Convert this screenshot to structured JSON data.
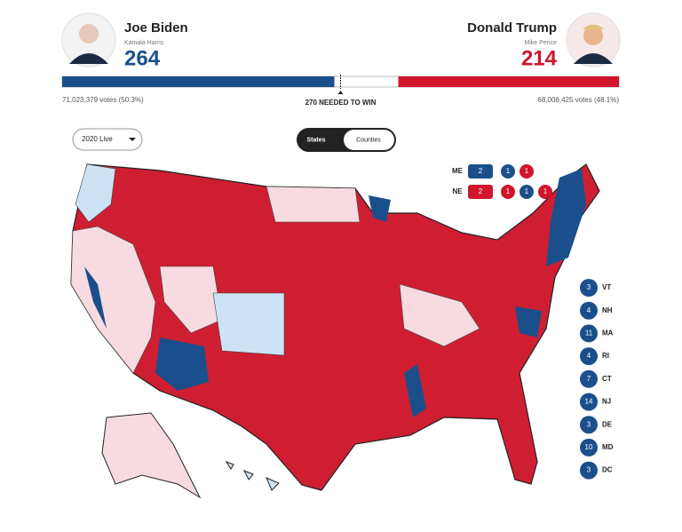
{
  "candidates": [
    {
      "name": "Joe Biden",
      "running_mate": "Kamala Harris",
      "electoral_votes": 264,
      "popular_votes": "71,023,379 votes (50.3%)",
      "color": "#1b4f8c"
    },
    {
      "name": "Donald Trump",
      "running_mate": "Mike Pence",
      "electoral_votes": 214,
      "popular_votes": "68,006,425 votes (48.1%)",
      "color": "#d0152d"
    }
  ],
  "needed": {
    "value": 270,
    "label": "270 NEEDED TO WIN"
  },
  "controls": {
    "year": "2020 Live",
    "toggle": [
      "States",
      "Counties"
    ]
  },
  "splits": [
    {
      "state": "ME",
      "votes": [
        {
          "value": 2,
          "color": "#1b4f8c"
        },
        {
          "value": 1,
          "color": "#1b4f8c"
        },
        {
          "value": 1,
          "color": "#d0152d"
        }
      ]
    },
    {
      "state": "NE",
      "votes": [
        {
          "value": 2,
          "color": "#d0152d"
        },
        {
          "value": 1,
          "color": "#d0152d"
        },
        {
          "value": 1,
          "color": "#1b4f8c"
        },
        {
          "value": 1,
          "color": "#d0152d"
        }
      ]
    }
  ],
  "small_states": [
    {
      "state": "VT",
      "votes": 3
    },
    {
      "state": "NH",
      "votes": 4
    },
    {
      "state": "MA",
      "votes": 11
    },
    {
      "state": "RI",
      "votes": 4
    },
    {
      "state": "CT",
      "votes": 7
    },
    {
      "state": "NJ",
      "votes": 14
    },
    {
      "state": "DE",
      "votes": 3
    },
    {
      "state": "MD",
      "votes": 10
    },
    {
      "state": "DC",
      "votes": 3
    }
  ]
}
